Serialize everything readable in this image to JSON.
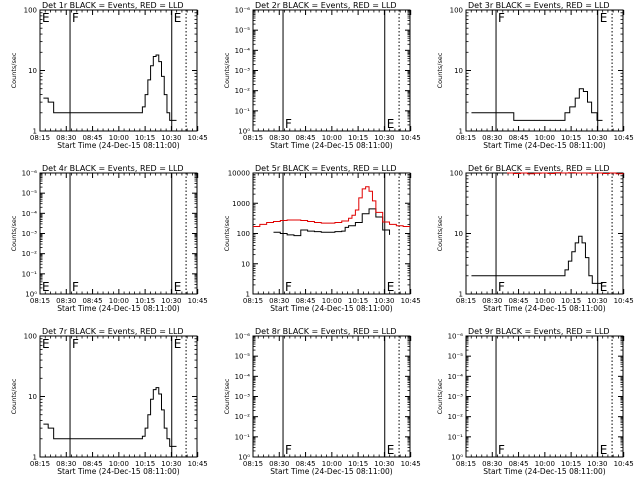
{
  "chart_data": [
    {
      "id": "det1",
      "type": "line",
      "title": "Det 1r BLACK = Events, RED = LLD",
      "ylabel": "Counts/sec",
      "xlabel": "Start Time (24-Dec-15 08:11:00)",
      "yscale": "log",
      "ylim": [
        1,
        100
      ],
      "yticks": [
        "1",
        "10",
        "100"
      ],
      "xticks": [
        "08:15",
        "08:30",
        "08:45",
        "10:00",
        "10:15",
        "10:30",
        "10:45"
      ],
      "markers": [
        {
          "label": "F"
        },
        {
          "label": "E"
        }
      ],
      "series": [
        {
          "name": "Events",
          "color": "#000000",
          "x": [
            0.5,
            1.2,
            2.0,
            3.0,
            4.0,
            5.0,
            6.0,
            7.0,
            8.0,
            9.0,
            10.0,
            11.0,
            12.0,
            13.0,
            14.0,
            15.0,
            15.4,
            15.8,
            16.2,
            16.6,
            17.0,
            17.4,
            17.8,
            18.2,
            18.6,
            19.0,
            19.5,
            20.0
          ],
          "y": [
            3.5,
            3,
            2,
            2,
            2,
            2,
            2,
            2,
            2,
            2,
            2,
            2,
            2,
            2,
            2,
            2.5,
            4,
            7,
            12,
            17,
            18,
            14,
            8,
            4,
            2,
            1.5,
            1.5,
            1.5
          ]
        },
        {
          "name": "LLD",
          "color": "#e00000",
          "x": [],
          "y": []
        }
      ]
    },
    {
      "id": "det2",
      "type": "line",
      "title": "Det 2r BLACK = Events, RED = LLD",
      "ylabel": "Counts/sec",
      "xlabel": "Start Time (24-Dec-15 08:11:00)",
      "yscale": "log",
      "ylim": [
        1,
        1e-06
      ],
      "yticks": [
        "10⁻⁶",
        "10⁻⁵",
        "10⁻⁴",
        "10⁻³",
        "10⁻²",
        "10⁻¹",
        "10⁰"
      ],
      "xticks": [
        "08:15",
        "08:30",
        "08:45",
        "10:00",
        "10:15",
        "10:30",
        "10:45"
      ],
      "markers": [
        {
          "label": "F"
        },
        {
          "label": "E"
        }
      ],
      "series": [
        {
          "name": "Events",
          "color": "#000000",
          "x": [],
          "y": []
        },
        {
          "name": "LLD",
          "color": "#e00000",
          "x": [],
          "y": []
        }
      ]
    },
    {
      "id": "det3",
      "type": "line",
      "title": "Det 3r BLACK = Events, RED = LLD",
      "ylabel": "Counts/sec",
      "xlabel": "Start Time (24-Dec-15 08:11:00)",
      "yscale": "log",
      "ylim": [
        1,
        100
      ],
      "yticks": [
        "1",
        "10",
        "100"
      ],
      "xticks": [
        "08:15",
        "08:30",
        "08:45",
        "10:00",
        "10:15",
        "10:30",
        "10:45"
      ],
      "markers": [
        {
          "label": "F"
        },
        {
          "label": "E"
        }
      ],
      "series": [
        {
          "name": "Events",
          "color": "#000000",
          "x": [
            0.8,
            3.0,
            5.0,
            7.0,
            9.0,
            11.0,
            13.0,
            14.5,
            15.2,
            16.0,
            16.6,
            17.2,
            17.8,
            18.4,
            19.2,
            20.0
          ],
          "y": [
            2,
            2,
            2,
            1.5,
            1.5,
            1.5,
            1.5,
            2,
            2.5,
            3.5,
            5,
            4.5,
            3,
            2,
            1.5,
            1.5
          ]
        },
        {
          "name": "LLD",
          "color": "#e00000",
          "x": [],
          "y": []
        }
      ]
    },
    {
      "id": "det4",
      "type": "line",
      "title": "Det 4r BLACK = Events, RED = LLD",
      "ylabel": "Counts/sec",
      "xlabel": "Start Time (24-Dec-15 08:11:00)",
      "yscale": "log",
      "ylim": [
        1,
        1e-06
      ],
      "yticks": [
        "10⁻⁶",
        "10⁻⁵",
        "10⁻⁴",
        "10⁻³",
        "10⁻²",
        "10⁻¹",
        "10⁰"
      ],
      "xticks": [
        "08:15",
        "08:30",
        "08:45",
        "10:00",
        "10:15",
        "10:30",
        "10:45"
      ],
      "markers": [
        {
          "label": "F"
        },
        {
          "label": "E"
        }
      ],
      "series": [
        {
          "name": "Events",
          "color": "#000000",
          "x": [],
          "y": []
        },
        {
          "name": "LLD",
          "color": "#e00000",
          "x": [],
          "y": []
        }
      ]
    },
    {
      "id": "det5",
      "type": "line",
      "title": "Det 5r BLACK = Events, RED = LLD",
      "ylabel": "Counts/sec",
      "xlabel": "Start Time (24-Dec-15 08:11:00)",
      "yscale": "log",
      "ylim": [
        1,
        10000
      ],
      "yticks": [
        "1",
        "10",
        "100",
        "1000",
        "10000"
      ],
      "xticks": [
        "08:15",
        "08:30",
        "08:45",
        "10:00",
        "10:15",
        "10:30",
        "10:45"
      ],
      "markers": [
        {
          "label": "F"
        },
        {
          "label": "E"
        }
      ],
      "series": [
        {
          "name": "Events",
          "color": "#000000",
          "x": [
            3.0,
            4.0,
            5.0,
            6.0,
            7.0,
            8.0,
            9.0,
            10.0,
            11.0,
            12.0,
            13.0,
            13.5,
            14.0,
            15.0,
            16.0,
            17.0,
            18.0,
            19.0,
            20.0
          ],
          "y": [
            110,
            100,
            90,
            85,
            130,
            120,
            115,
            110,
            110,
            115,
            120,
            160,
            180,
            230,
            450,
            650,
            350,
            130,
            90
          ]
        },
        {
          "name": "LLD",
          "color": "#e00000",
          "x": [
            0.0,
            1.0,
            2.0,
            3.0,
            4.0,
            5.0,
            6.0,
            7.0,
            8.0,
            9.0,
            10.0,
            11.0,
            12.0,
            13.0,
            14.0,
            14.5,
            15.0,
            15.5,
            16.0,
            16.5,
            17.0,
            17.5,
            18.0,
            19.0,
            20.0,
            21.0,
            22.0,
            23.0
          ],
          "y": [
            170,
            200,
            230,
            250,
            270,
            280,
            280,
            270,
            250,
            230,
            220,
            220,
            230,
            260,
            320,
            400,
            600,
            1500,
            3000,
            3500,
            2500,
            1200,
            500,
            240,
            200,
            180,
            170,
            170
          ]
        }
      ]
    },
    {
      "id": "det6",
      "type": "line",
      "title": "Det 6r BLACK = Events, RED = LLD",
      "ylabel": "Counts/sec",
      "xlabel": "Start Time (24-Dec-15 08:11:00)",
      "yscale": "log",
      "ylim": [
        1,
        100
      ],
      "yticks": [
        "1",
        "10",
        "100"
      ],
      "xticks": [
        "08:15",
        "08:30",
        "08:45",
        "10:00",
        "10:15",
        "10:30",
        "10:45"
      ],
      "markers": [
        {
          "label": "F"
        },
        {
          "label": "E"
        }
      ],
      "series": [
        {
          "name": "Events",
          "color": "#000000",
          "x": [
            0.8,
            1.5,
            3.0,
            5.0,
            7.0,
            9.0,
            11.0,
            13.0,
            14.5,
            15.0,
            15.5,
            16.0,
            16.5,
            17.0,
            17.5,
            18.0,
            18.5,
            19.0,
            20.0
          ],
          "y": [
            2,
            2,
            2,
            2,
            2,
            2,
            2,
            2,
            2.5,
            3.5,
            5,
            7,
            9,
            7,
            4,
            2,
            1.5,
            1.5,
            1.5
          ]
        },
        {
          "name": "LLD",
          "color": "#e00000",
          "x": [
            6.0,
            7.0,
            8.0,
            9.0,
            10.0,
            11.0,
            12.0,
            13.0,
            14.0,
            15.0,
            16.0,
            17.0,
            18.0,
            19.0,
            20.0,
            21.0,
            22.0,
            23.0
          ],
          "y": [
            100,
            98,
            100,
            97,
            99,
            100,
            98,
            101,
            100,
            101,
            100,
            100,
            99,
            100,
            98,
            100,
            97,
            100
          ]
        }
      ]
    },
    {
      "id": "det7",
      "type": "line",
      "title": "Det 7r BLACK = Events, RED = LLD",
      "ylabel": "Counts/sec",
      "xlabel": "Start Time (24-Dec-15 08:11:00)",
      "yscale": "log",
      "ylim": [
        1,
        100
      ],
      "yticks": [
        "1",
        "10",
        "100"
      ],
      "xticks": [
        "08:15",
        "08:30",
        "08:45",
        "10:00",
        "10:15",
        "10:30",
        "10:45"
      ],
      "markers": [
        {
          "label": "F"
        },
        {
          "label": "E"
        }
      ],
      "series": [
        {
          "name": "Events",
          "color": "#000000",
          "x": [
            0.5,
            1.2,
            2.0,
            3.0,
            4.0,
            5.0,
            6.0,
            7.0,
            8.0,
            9.0,
            10.0,
            11.0,
            12.0,
            13.0,
            14.0,
            15.0,
            15.4,
            15.8,
            16.2,
            16.6,
            17.0,
            17.4,
            17.8,
            18.2,
            18.6,
            19.0,
            19.5,
            20.0
          ],
          "y": [
            3.5,
            3,
            2,
            2,
            2,
            2,
            2,
            2,
            2,
            2,
            2,
            2,
            2,
            2,
            2,
            2.2,
            3,
            5,
            9,
            13,
            14,
            11,
            6,
            3,
            2,
            1.5,
            1.5,
            1.5
          ]
        },
        {
          "name": "LLD",
          "color": "#e00000",
          "x": [],
          "y": []
        }
      ]
    },
    {
      "id": "det8",
      "type": "line",
      "title": "Det 8r BLACK = Events, RED = LLD",
      "ylabel": "Counts/sec",
      "xlabel": "Start Time (24-Dec-15 08:11:00)",
      "yscale": "log",
      "ylim": [
        1,
        1e-06
      ],
      "yticks": [
        "10⁻⁶",
        "10⁻⁵",
        "10⁻⁴",
        "10⁻³",
        "10⁻²",
        "10⁻¹",
        "10⁰"
      ],
      "xticks": [
        "08:15",
        "08:30",
        "08:45",
        "10:00",
        "10:15",
        "10:30",
        "10:45"
      ],
      "markers": [
        {
          "label": "F"
        },
        {
          "label": "E"
        }
      ],
      "series": [
        {
          "name": "Events",
          "color": "#000000",
          "x": [],
          "y": []
        },
        {
          "name": "LLD",
          "color": "#e00000",
          "x": [],
          "y": []
        }
      ]
    },
    {
      "id": "det9",
      "type": "line",
      "title": "Det 9r BLACK = Events, RED = LLD",
      "ylabel": "Counts/sec",
      "xlabel": "Start Time (24-Dec-15 08:11:00)",
      "yscale": "log",
      "ylim": [
        1,
        1e-06
      ],
      "yticks": [
        "10⁻⁶",
        "10⁻⁵",
        "10⁻⁴",
        "10⁻³",
        "10⁻²",
        "10⁻¹",
        "10⁰"
      ],
      "xticks": [
        "08:15",
        "08:30",
        "08:45",
        "10:00",
        "10:15",
        "10:30",
        "10:45"
      ],
      "markers": [
        {
          "label": "F"
        },
        {
          "label": "E"
        }
      ],
      "series": [
        {
          "name": "Events",
          "color": "#000000",
          "x": [],
          "y": []
        },
        {
          "name": "LLD",
          "color": "#e00000",
          "x": [],
          "y": []
        }
      ]
    }
  ]
}
